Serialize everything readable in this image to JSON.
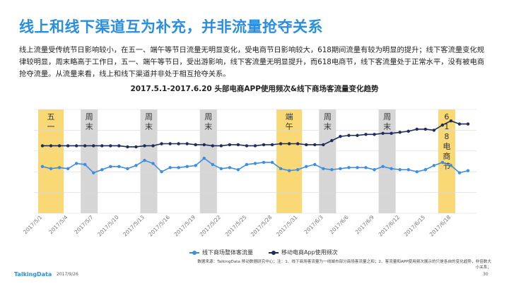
{
  "page": {
    "title": "线上和线下渠道互为补充，并非流量抢夺关系",
    "description": "线上流量受传统节日影响较小，在五一、端午等节日流量无明显变化，受电商节日影响较大，618期间流量有较为明显的提升；线下客流量变化规律较明显，周末略高于工作日，五一、端午等节日，受出游影响，线下客流量无明显提升，而618电商节，线下客流量处于正常水平，没有被电商抢夺流量。从流量来看，线上和线下渠道并非处于相互抢夺关系。",
    "source": "数据来源：TalkingData 移动数据研究中心；注：1、线下商场客流量为一线城市部分商场客流量之和；2、客流量和APP使用频次展示的只是各自的变化趋势，非倍数大小关系；",
    "footer": {
      "logo": "TalkingData",
      "date": "2017/9/26",
      "page_number": "30"
    }
  },
  "chart_data": {
    "type": "line",
    "title": "2017.5.1-2017.6.20 头部电商APP使用频次&线下商场客流量变化趋势",
    "x_tick_labels": [
      "2017/5/1",
      "2017/5/4",
      "2017/5/7",
      "2017/5/10",
      "2017/5/13",
      "2017/5/16",
      "2017/5/19",
      "2017/5/22",
      "2017/5/25",
      "2017/5/28",
      "2017/5/31",
      "2017/6/3",
      "2017/6/6",
      "2017/6/9",
      "2017/6/12",
      "2017/6/15",
      "2017/6/18"
    ],
    "series": [
      {
        "name": "线下商场整体客流量",
        "color": "#3d8ee0",
        "values": [
          4.5,
          4.3,
          4.4,
          4.3,
          4.8,
          4.7,
          3.9,
          4.2,
          4.5,
          4.5,
          4.3,
          4.6,
          5.1,
          4.8,
          4.0,
          4.4,
          4.4,
          4.5,
          4.6,
          5.3,
          4.7,
          4.3,
          4.4,
          4.2,
          4.7,
          4.8,
          4.9,
          4.9,
          4.3,
          4.1,
          4.2,
          4.5,
          4.7,
          4.3,
          4.2,
          4.3,
          4.4,
          4.4,
          4.4,
          4.2,
          4.5,
          4.3,
          4.2,
          4.2,
          4.0,
          4.2,
          4.6,
          4.9,
          4.6,
          3.9,
          4.1
        ]
      },
      {
        "name": "移动电商App使用频次",
        "color": "#1f2d5a",
        "values": [
          6.5,
          6.5,
          6.5,
          6.5,
          6.5,
          6.5,
          6.5,
          6.5,
          6.5,
          6.5,
          6.4,
          6.4,
          6.5,
          6.5,
          6.7,
          6.7,
          6.7,
          6.7,
          6.6,
          6.6,
          6.5,
          6.5,
          6.6,
          6.6,
          6.5,
          6.5,
          6.6,
          6.6,
          6.7,
          6.7,
          6.7,
          6.6,
          6.6,
          6.6,
          7.0,
          7.4,
          7.5,
          7.5,
          7.6,
          7.6,
          7.7,
          7.7,
          7.8,
          7.9,
          8.1,
          8.1,
          8.0,
          8.5,
          8.9,
          8.6,
          8.6
        ]
      }
    ],
    "highlights": [
      {
        "label": "五一",
        "type": "holiday",
        "start": 0,
        "end": 2
      },
      {
        "label": "周末",
        "type": "weekend",
        "start": 5,
        "end": 6
      },
      {
        "label": "周末",
        "type": "weekend",
        "start": 12,
        "end": 13
      },
      {
        "label": "周末",
        "type": "weekend",
        "start": 19,
        "end": 20
      },
      {
        "label": "端午",
        "type": "holiday",
        "start": 28,
        "end": 30
      },
      {
        "label": "周末",
        "type": "weekend",
        "start": 33,
        "end": 34
      },
      {
        "label": "周末",
        "type": "weekend",
        "start": 40,
        "end": 41
      },
      {
        "label": "618电商节",
        "type": "holiday",
        "start": 47,
        "end": 48
      }
    ],
    "colors": {
      "holiday": "#f9d976",
      "weekend": "#d6d6d6",
      "grid": "#d9d9d9"
    },
    "ylim": [
      0,
      10
    ],
    "grid": true,
    "legend_position": "bottom"
  }
}
